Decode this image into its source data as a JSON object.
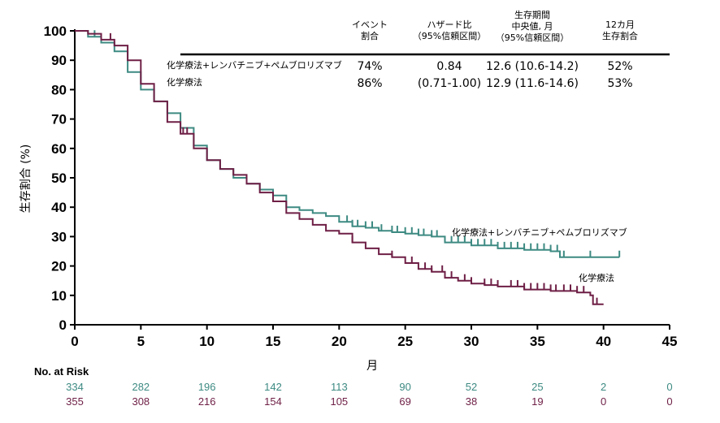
{
  "chart_data": {
    "type": "line",
    "xlabel": "月",
    "ylabel": "生存割合 (%)",
    "xlim": [
      0,
      45
    ],
    "ylim": [
      0,
      100
    ],
    "xticks": [
      0,
      5,
      10,
      15,
      20,
      25,
      30,
      35,
      40,
      45
    ],
    "yticks": [
      0,
      10,
      20,
      30,
      40,
      50,
      60,
      70,
      80,
      90,
      100
    ],
    "grid": false,
    "series": [
      {
        "name": "化学療法+レンバチニブ+ペムブロリズマブ",
        "end_label": "化学療法+レンバチニブ+ペムブロリズマブ",
        "color": "#3d8a82",
        "x": [
          0,
          1,
          2,
          3,
          4,
          5,
          6,
          7,
          8,
          9,
          10,
          11,
          12,
          13,
          14,
          15,
          16,
          17,
          18,
          19,
          20,
          21,
          22,
          23,
          24,
          25,
          26,
          27,
          28,
          30,
          32,
          34,
          36,
          36.7,
          38,
          40,
          41.2
        ],
        "y": [
          100,
          98,
          96,
          93,
          86,
          80,
          76,
          72,
          67,
          61,
          56,
          53,
          50,
          48,
          46,
          44,
          40,
          39,
          38,
          37,
          35,
          33.5,
          33,
          32,
          31.5,
          31,
          30.5,
          30,
          28,
          27,
          26,
          25.5,
          25,
          23,
          23,
          23,
          23
        ],
        "censor_x": [
          1.5,
          20.6,
          21,
          21.4,
          22,
          22.5,
          23.2,
          24,
          24.4,
          25,
          25.5,
          26,
          26.4,
          27,
          27.4,
          28,
          28.5,
          29,
          29.5,
          30,
          30.5,
          31,
          31.5,
          32,
          32.5,
          33,
          33.5,
          34,
          34.5,
          35,
          35.5,
          36,
          36.5,
          37,
          39,
          41.2
        ]
      },
      {
        "name": "化学療法",
        "end_label": "化学療法",
        "color": "#6e1f45",
        "x": [
          0,
          1,
          2,
          3,
          4,
          5,
          6,
          7,
          8,
          9,
          10,
          11,
          12,
          13,
          14,
          15,
          16,
          17,
          18,
          19,
          20,
          21,
          22,
          23,
          24,
          25,
          26,
          27,
          28,
          29,
          30,
          31,
          32,
          34,
          36,
          38,
          39,
          39.2,
          40
        ],
        "y": [
          100,
          99,
          97,
          95,
          90,
          82,
          76,
          69,
          65,
          60,
          56,
          53,
          51,
          48,
          45,
          42,
          38,
          36,
          34,
          32,
          31,
          28,
          26,
          24,
          23,
          21,
          19,
          18,
          16,
          15,
          14,
          13.5,
          13,
          12,
          11.5,
          11,
          10,
          7,
          7
        ],
        "censor_x": [
          2.7,
          8.2,
          8.5,
          21,
          24,
          25.5,
          26.5,
          27,
          27.8,
          28.5,
          29.5,
          30,
          31,
          31.5,
          32,
          33,
          33.5,
          34,
          34.5,
          35,
          35.5,
          36,
          36.4,
          37,
          37.5,
          38,
          38.5,
          39.5
        ]
      }
    ],
    "stats_table": {
      "headers": [
        [
          "イベント",
          "割合"
        ],
        [
          "ハザード比",
          "（95%信頼区間）"
        ],
        [
          "生存期間",
          "中央値, 月",
          "（95%信頼区間）"
        ],
        [
          "12カ月",
          "生存割合"
        ]
      ],
      "rows": [
        {
          "label": "化学療法+レンバチニブ+ペムブロリズマブ",
          "events": "74%",
          "hr": "0.84",
          "median": "12.6 (10.6-14.2)",
          "m12": "52%"
        },
        {
          "label": "化学療法",
          "events": "86%",
          "hr": "(0.71-1.00)",
          "median": "12.9 (11.6-14.6)",
          "m12": "53%"
        }
      ]
    },
    "at_risk": {
      "title": "No. at Risk",
      "rows": [
        {
          "values": [
            "334",
            "282",
            "196",
            "142",
            "113",
            "90",
            "52",
            "25",
            "2",
            "0"
          ],
          "color": "#3d8a82"
        },
        {
          "values": [
            "355",
            "308",
            "216",
            "154",
            "105",
            "69",
            "38",
            "19",
            "0",
            "0"
          ],
          "color": "#6e1f45"
        }
      ]
    }
  }
}
